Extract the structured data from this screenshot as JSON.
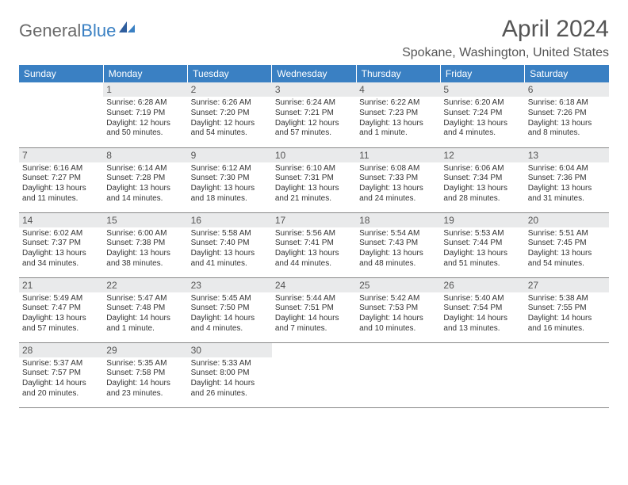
{
  "logo": {
    "part1": "General",
    "part2": "Blue"
  },
  "header": {
    "title": "April 2024",
    "location": "Spokane, Washington, United States"
  },
  "weekdays": [
    "Sunday",
    "Monday",
    "Tuesday",
    "Wednesday",
    "Thursday",
    "Friday",
    "Saturday"
  ],
  "colors": {
    "header_bg": "#3a80c3",
    "header_text": "#ffffff",
    "daynum_bg": "#e9eaeb",
    "border": "#888888",
    "text": "#333333",
    "title_text": "#555555"
  },
  "weeks": [
    [
      {
        "day": "",
        "sunrise": "",
        "sunset": "",
        "daylight": ""
      },
      {
        "day": "1",
        "sunrise": "Sunrise: 6:28 AM",
        "sunset": "Sunset: 7:19 PM",
        "daylight": "Daylight: 12 hours and 50 minutes."
      },
      {
        "day": "2",
        "sunrise": "Sunrise: 6:26 AM",
        "sunset": "Sunset: 7:20 PM",
        "daylight": "Daylight: 12 hours and 54 minutes."
      },
      {
        "day": "3",
        "sunrise": "Sunrise: 6:24 AM",
        "sunset": "Sunset: 7:21 PM",
        "daylight": "Daylight: 12 hours and 57 minutes."
      },
      {
        "day": "4",
        "sunrise": "Sunrise: 6:22 AM",
        "sunset": "Sunset: 7:23 PM",
        "daylight": "Daylight: 13 hours and 1 minute."
      },
      {
        "day": "5",
        "sunrise": "Sunrise: 6:20 AM",
        "sunset": "Sunset: 7:24 PM",
        "daylight": "Daylight: 13 hours and 4 minutes."
      },
      {
        "day": "6",
        "sunrise": "Sunrise: 6:18 AM",
        "sunset": "Sunset: 7:26 PM",
        "daylight": "Daylight: 13 hours and 8 minutes."
      }
    ],
    [
      {
        "day": "7",
        "sunrise": "Sunrise: 6:16 AM",
        "sunset": "Sunset: 7:27 PM",
        "daylight": "Daylight: 13 hours and 11 minutes."
      },
      {
        "day": "8",
        "sunrise": "Sunrise: 6:14 AM",
        "sunset": "Sunset: 7:28 PM",
        "daylight": "Daylight: 13 hours and 14 minutes."
      },
      {
        "day": "9",
        "sunrise": "Sunrise: 6:12 AM",
        "sunset": "Sunset: 7:30 PM",
        "daylight": "Daylight: 13 hours and 18 minutes."
      },
      {
        "day": "10",
        "sunrise": "Sunrise: 6:10 AM",
        "sunset": "Sunset: 7:31 PM",
        "daylight": "Daylight: 13 hours and 21 minutes."
      },
      {
        "day": "11",
        "sunrise": "Sunrise: 6:08 AM",
        "sunset": "Sunset: 7:33 PM",
        "daylight": "Daylight: 13 hours and 24 minutes."
      },
      {
        "day": "12",
        "sunrise": "Sunrise: 6:06 AM",
        "sunset": "Sunset: 7:34 PM",
        "daylight": "Daylight: 13 hours and 28 minutes."
      },
      {
        "day": "13",
        "sunrise": "Sunrise: 6:04 AM",
        "sunset": "Sunset: 7:36 PM",
        "daylight": "Daylight: 13 hours and 31 minutes."
      }
    ],
    [
      {
        "day": "14",
        "sunrise": "Sunrise: 6:02 AM",
        "sunset": "Sunset: 7:37 PM",
        "daylight": "Daylight: 13 hours and 34 minutes."
      },
      {
        "day": "15",
        "sunrise": "Sunrise: 6:00 AM",
        "sunset": "Sunset: 7:38 PM",
        "daylight": "Daylight: 13 hours and 38 minutes."
      },
      {
        "day": "16",
        "sunrise": "Sunrise: 5:58 AM",
        "sunset": "Sunset: 7:40 PM",
        "daylight": "Daylight: 13 hours and 41 minutes."
      },
      {
        "day": "17",
        "sunrise": "Sunrise: 5:56 AM",
        "sunset": "Sunset: 7:41 PM",
        "daylight": "Daylight: 13 hours and 44 minutes."
      },
      {
        "day": "18",
        "sunrise": "Sunrise: 5:54 AM",
        "sunset": "Sunset: 7:43 PM",
        "daylight": "Daylight: 13 hours and 48 minutes."
      },
      {
        "day": "19",
        "sunrise": "Sunrise: 5:53 AM",
        "sunset": "Sunset: 7:44 PM",
        "daylight": "Daylight: 13 hours and 51 minutes."
      },
      {
        "day": "20",
        "sunrise": "Sunrise: 5:51 AM",
        "sunset": "Sunset: 7:45 PM",
        "daylight": "Daylight: 13 hours and 54 minutes."
      }
    ],
    [
      {
        "day": "21",
        "sunrise": "Sunrise: 5:49 AM",
        "sunset": "Sunset: 7:47 PM",
        "daylight": "Daylight: 13 hours and 57 minutes."
      },
      {
        "day": "22",
        "sunrise": "Sunrise: 5:47 AM",
        "sunset": "Sunset: 7:48 PM",
        "daylight": "Daylight: 14 hours and 1 minute."
      },
      {
        "day": "23",
        "sunrise": "Sunrise: 5:45 AM",
        "sunset": "Sunset: 7:50 PM",
        "daylight": "Daylight: 14 hours and 4 minutes."
      },
      {
        "day": "24",
        "sunrise": "Sunrise: 5:44 AM",
        "sunset": "Sunset: 7:51 PM",
        "daylight": "Daylight: 14 hours and 7 minutes."
      },
      {
        "day": "25",
        "sunrise": "Sunrise: 5:42 AM",
        "sunset": "Sunset: 7:53 PM",
        "daylight": "Daylight: 14 hours and 10 minutes."
      },
      {
        "day": "26",
        "sunrise": "Sunrise: 5:40 AM",
        "sunset": "Sunset: 7:54 PM",
        "daylight": "Daylight: 14 hours and 13 minutes."
      },
      {
        "day": "27",
        "sunrise": "Sunrise: 5:38 AM",
        "sunset": "Sunset: 7:55 PM",
        "daylight": "Daylight: 14 hours and 16 minutes."
      }
    ],
    [
      {
        "day": "28",
        "sunrise": "Sunrise: 5:37 AM",
        "sunset": "Sunset: 7:57 PM",
        "daylight": "Daylight: 14 hours and 20 minutes."
      },
      {
        "day": "29",
        "sunrise": "Sunrise: 5:35 AM",
        "sunset": "Sunset: 7:58 PM",
        "daylight": "Daylight: 14 hours and 23 minutes."
      },
      {
        "day": "30",
        "sunrise": "Sunrise: 5:33 AM",
        "sunset": "Sunset: 8:00 PM",
        "daylight": "Daylight: 14 hours and 26 minutes."
      },
      {
        "day": "",
        "sunrise": "",
        "sunset": "",
        "daylight": ""
      },
      {
        "day": "",
        "sunrise": "",
        "sunset": "",
        "daylight": ""
      },
      {
        "day": "",
        "sunrise": "",
        "sunset": "",
        "daylight": ""
      },
      {
        "day": "",
        "sunrise": "",
        "sunset": "",
        "daylight": ""
      }
    ]
  ]
}
